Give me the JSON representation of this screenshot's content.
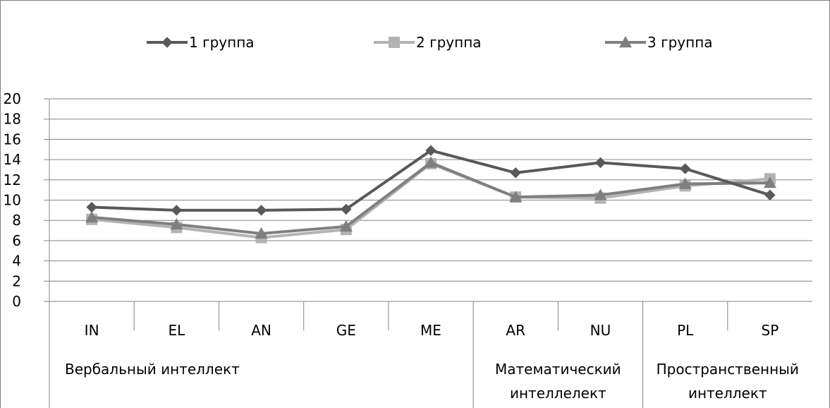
{
  "chart_data": {
    "type": "line",
    "categories": [
      "IN",
      "EL",
      "AN",
      "GE",
      "ME",
      "AR",
      "NU",
      "PL",
      "SP"
    ],
    "category_groups": [
      {
        "lines": [
          "Вербальный интеллект"
        ],
        "span": [
          0,
          4
        ]
      },
      {
        "lines": [
          "Математический",
          "интеллелект"
        ],
        "span": [
          5,
          6
        ]
      },
      {
        "lines": [
          "Пространственный",
          "интеллект"
        ],
        "span": [
          7,
          8
        ]
      }
    ],
    "series": [
      {
        "name": "1 группа",
        "color": "#595959",
        "marker": "diamond",
        "values": [
          9.3,
          9.0,
          9.0,
          9.1,
          14.9,
          12.7,
          13.7,
          13.1,
          10.5
        ]
      },
      {
        "name": "2 группа",
        "color": "#b3b3b3",
        "marker": "square",
        "values": [
          8.1,
          7.3,
          6.3,
          7.1,
          13.6,
          10.3,
          10.2,
          11.4,
          12.1
        ]
      },
      {
        "name": "3 группа",
        "color": "#7f7f7f",
        "marker": "triangle",
        "values": [
          8.3,
          7.6,
          6.7,
          7.4,
          13.7,
          10.3,
          10.5,
          11.6,
          11.7
        ]
      }
    ],
    "ylim": [
      0,
      20
    ],
    "yticks": [
      "0",
      "2",
      "4",
      "6",
      "8",
      "10",
      "12",
      "14",
      "16",
      "18",
      "20"
    ],
    "grid": true,
    "legend_position": "top"
  }
}
